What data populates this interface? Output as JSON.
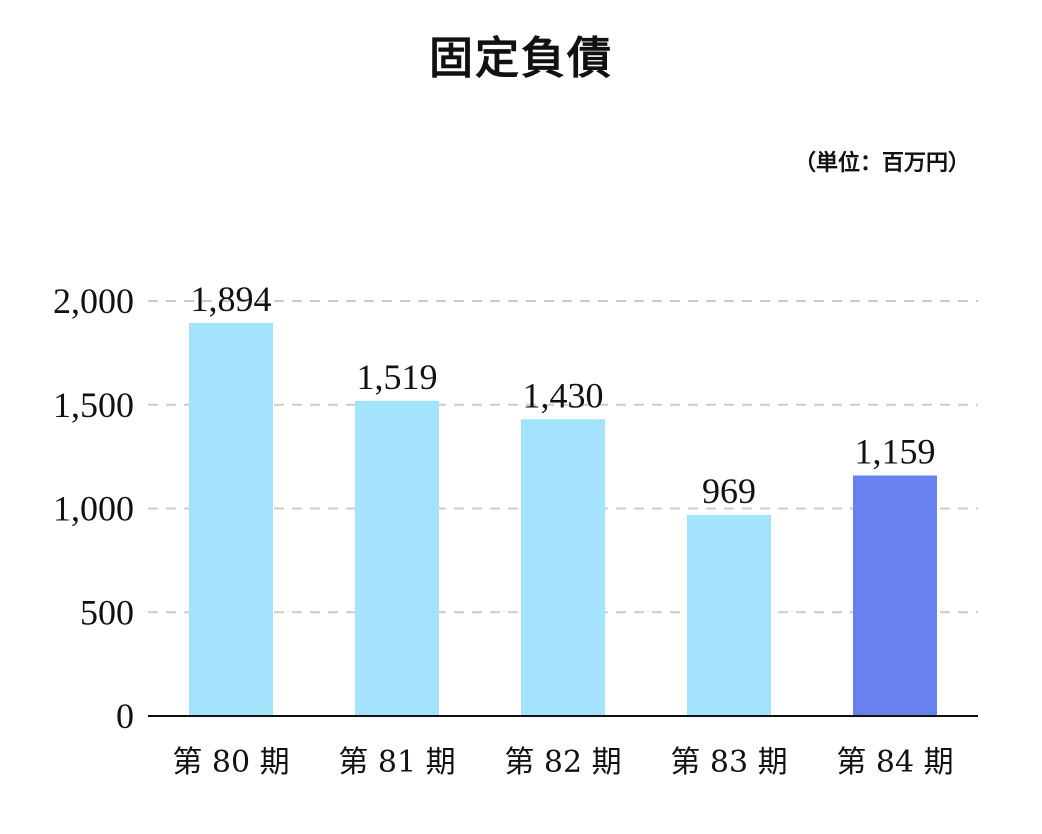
{
  "chart_data": {
    "type": "bar",
    "title": "固定負債",
    "unit": "（単位：百万円）",
    "categories": [
      "第 80 期",
      "第 81 期",
      "第 82 期",
      "第 83 期",
      "第 84 期"
    ],
    "values": [
      1894,
      1519,
      1430,
      969,
      1159
    ],
    "data_labels": [
      "1,894",
      "1,519",
      "1,430",
      "969",
      "1,159"
    ],
    "ylim": [
      0,
      2000
    ],
    "yticks": [
      0,
      500,
      1000,
      1500,
      2000
    ],
    "ytick_labels": [
      "0",
      "500",
      "1,000",
      "1,500",
      "2,000"
    ],
    "grid": true,
    "colors": {
      "bar": "#a3e3fc",
      "highlight": "#6781f0",
      "highlight_index": 4,
      "grid": "#cccccc",
      "axis": "#111111"
    }
  }
}
